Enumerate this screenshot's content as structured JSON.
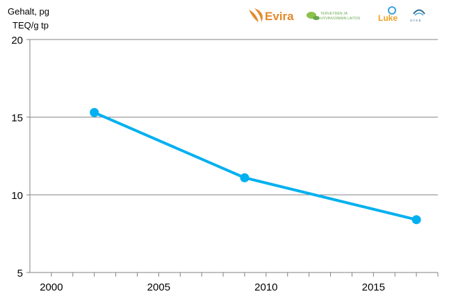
{
  "chart_data": {
    "type": "line",
    "ylabel": [
      "Gehalt, pg",
      "TEQ/g tp"
    ],
    "xlim": [
      1999,
      2018
    ],
    "ylim": [
      5,
      20
    ],
    "xticks": [
      2000,
      2005,
      2010,
      2015
    ],
    "yticks": [
      5,
      10,
      15,
      20
    ],
    "grid": "horizontal",
    "series": [
      {
        "color": "#00b0f0",
        "x": [
          2002,
          2009,
          2017
        ],
        "y": [
          15.3,
          11.1,
          8.4
        ]
      }
    ]
  },
  "logos": {
    "evira": {
      "text": "Evira",
      "color": "#e3892a"
    },
    "thl": {
      "line1": "TERVEYDEN JA",
      "line2": "HYVINVOINNIN LAITOS",
      "color": "#6aa84f"
    },
    "luke": {
      "text": "Luke",
      "color": "#f0a020",
      "icon_color": "#3aa0d8"
    },
    "syke": {
      "text": "S Y K E",
      "color": "#2f6d8f"
    }
  }
}
